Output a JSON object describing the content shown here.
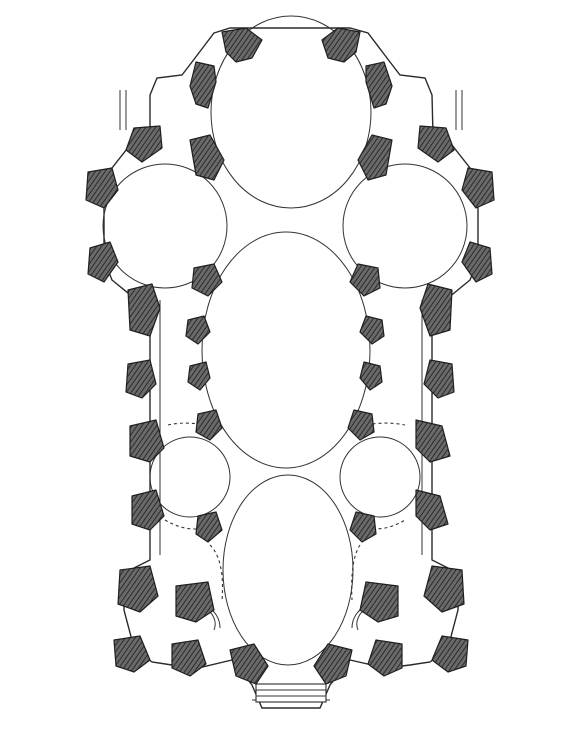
{
  "figure": {
    "kind": "architectural-floor-plan",
    "palette": {
      "ink": "#2a2a2a",
      "hatch": "#4d4d4d",
      "paper": "#ffffff"
    }
  }
}
